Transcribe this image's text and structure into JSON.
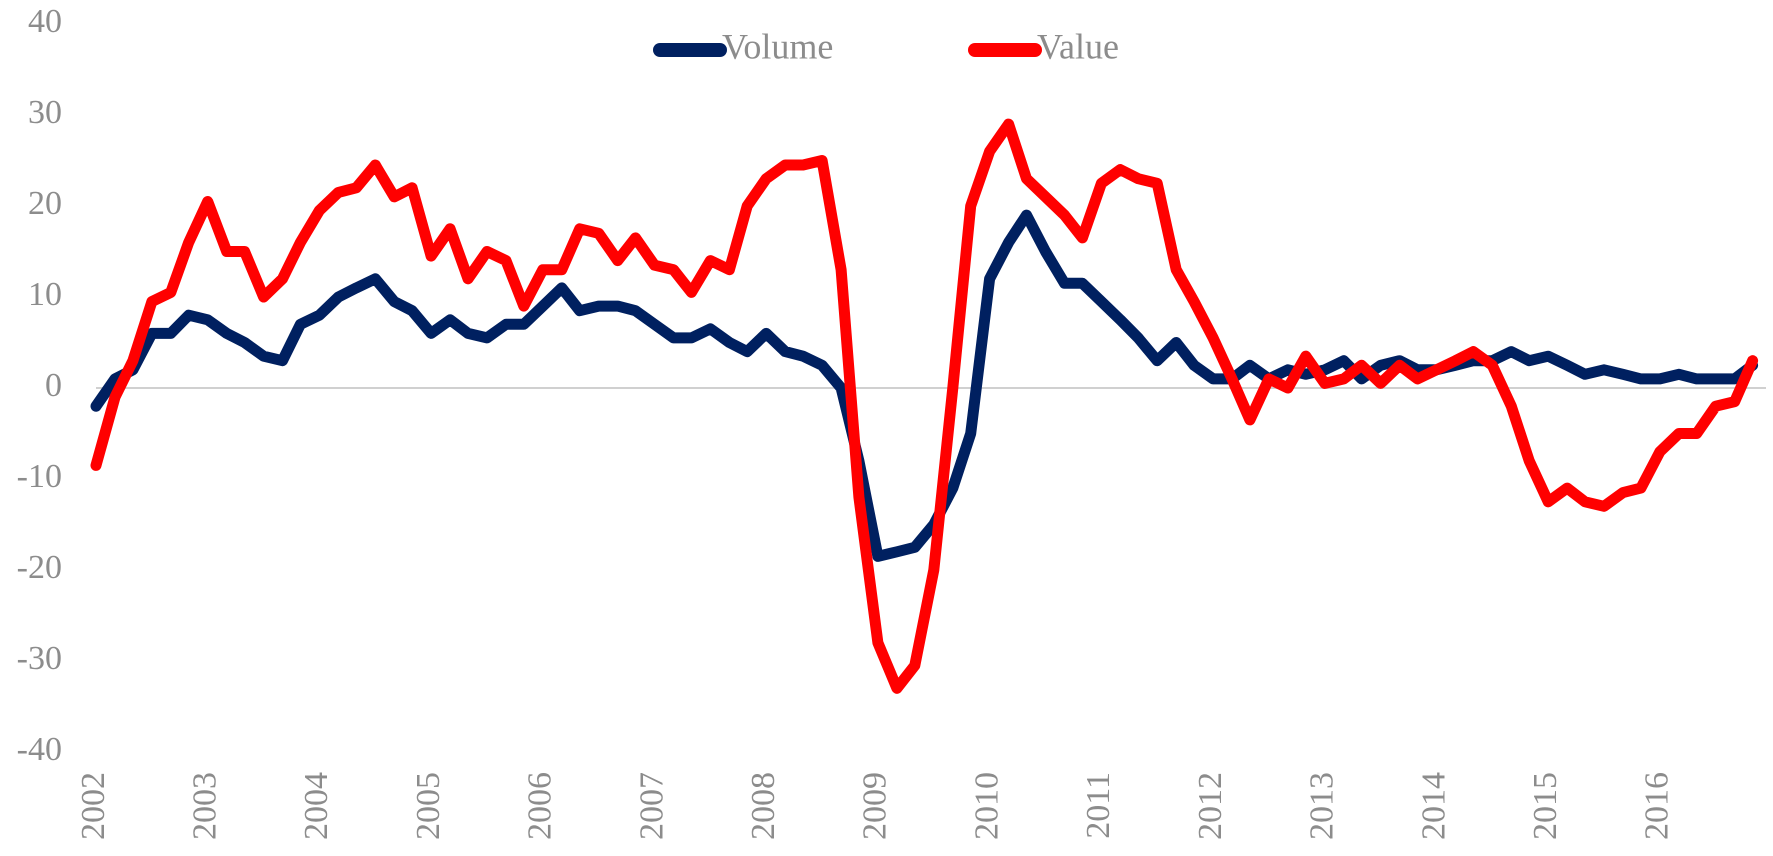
{
  "chart_data": {
    "type": "line",
    "x": [
      2002,
      2002.17,
      2002.33,
      2002.5,
      2002.67,
      2002.83,
      2003,
      2003.17,
      2003.33,
      2003.5,
      2003.67,
      2003.83,
      2004,
      2004.17,
      2004.33,
      2004.5,
      2004.67,
      2004.83,
      2005,
      2005.17,
      2005.33,
      2005.5,
      2005.67,
      2005.83,
      2006,
      2006.17,
      2006.33,
      2006.5,
      2006.67,
      2006.83,
      2007,
      2007.17,
      2007.33,
      2007.5,
      2007.67,
      2007.83,
      2008,
      2008.17,
      2008.33,
      2008.5,
      2008.67,
      2008.83,
      2009,
      2009.17,
      2009.33,
      2009.5,
      2009.67,
      2009.83,
      2010,
      2010.17,
      2010.33,
      2010.5,
      2010.67,
      2010.83,
      2011,
      2011.17,
      2011.33,
      2011.5,
      2011.67,
      2011.83,
      2012,
      2012.17,
      2012.33,
      2012.5,
      2012.67,
      2012.83,
      2013,
      2013.17,
      2013.33,
      2013.5,
      2013.67,
      2013.83,
      2014,
      2014.17,
      2014.33,
      2014.5,
      2014.67,
      2014.83,
      2015,
      2015.17,
      2015.33,
      2015.5,
      2015.67,
      2015.83,
      2016,
      2016.17,
      2016.33,
      2016.5,
      2016.67,
      2016.83
    ],
    "series": [
      {
        "name": "Volume",
        "color": "#002060",
        "values": [
          -2,
          1,
          2,
          6,
          6,
          8,
          7.5,
          6,
          5,
          3.5,
          3,
          7,
          8,
          10,
          11,
          12,
          9.5,
          8.5,
          6,
          7.5,
          6,
          5.5,
          7,
          7,
          9,
          11,
          8.5,
          9,
          9,
          8.5,
          7,
          5.5,
          5.5,
          6.5,
          5,
          4,
          6,
          4,
          3.5,
          2.5,
          0,
          -8,
          -18.5,
          -18,
          -17.5,
          -15,
          -11,
          -5,
          12,
          16,
          19,
          15,
          11.5,
          11.5,
          9.5,
          7.5,
          5.5,
          3,
          5,
          2.5,
          1,
          1,
          2.5,
          1,
          2,
          1.5,
          2,
          3,
          1,
          2.5,
          3,
          2,
          2,
          2.5,
          3,
          3,
          4,
          3,
          3.5,
          2.5,
          1.5,
          2,
          1.5,
          1,
          1,
          1.5,
          1,
          1,
          1,
          2.5
        ]
      },
      {
        "name": "Value",
        "color": "#ff0000",
        "values": [
          -8.5,
          -1,
          3,
          9.5,
          10.5,
          16,
          20.5,
          15,
          15,
          10,
          12,
          16,
          19.5,
          21.5,
          22,
          24.5,
          21,
          22,
          14.5,
          17.5,
          12,
          15,
          14,
          9,
          13,
          13,
          17.5,
          17,
          14,
          16.5,
          13.5,
          13,
          10.5,
          14,
          13,
          20,
          23,
          24.5,
          24.5,
          25,
          13,
          -12,
          -28,
          -33,
          -30.5,
          -20,
          0,
          20,
          26,
          29,
          23,
          21,
          19,
          16.5,
          22.5,
          24,
          23,
          22.5,
          13,
          9.5,
          5.5,
          1,
          -3.5,
          1,
          0,
          3.5,
          0.5,
          1,
          2.5,
          0.5,
          2.5,
          1,
          2,
          3,
          4,
          2.5,
          -2,
          -8,
          -12.5,
          -11,
          -12.5,
          -13,
          -11.5,
          -11,
          -7,
          -5,
          -5,
          -2,
          -1.5,
          3
        ]
      }
    ],
    "xlim": [
      2002,
      2016.95
    ],
    "xticks": [
      2002,
      2003,
      2004,
      2005,
      2006,
      2007,
      2008,
      2009,
      2010,
      2011,
      2012,
      2013,
      2014,
      2015,
      2016
    ],
    "ylim": [
      -40,
      40
    ],
    "yticks": [
      -40,
      -30,
      -20,
      -10,
      0,
      10,
      20,
      30,
      40
    ],
    "legend": "top"
  }
}
